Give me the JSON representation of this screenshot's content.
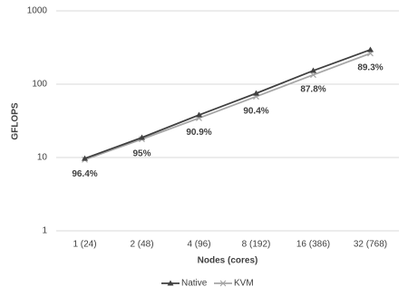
{
  "chart_data": {
    "type": "line",
    "y_label": "GFLOPS",
    "x_label": "Nodes (cores)",
    "categories": [
      "1 (24)",
      "2 (48)",
      "4 (96)",
      "8 (192)",
      "16 (386)",
      "32 (768)"
    ],
    "series": [
      {
        "name": "Native",
        "color": "#404040",
        "marker": "triangle",
        "values": [
          9.7,
          18.7,
          38,
          75,
          153,
          295
        ]
      },
      {
        "name": "KVM",
        "color": "#a6a6a6",
        "marker": "x",
        "values": [
          9.35,
          17.8,
          34.5,
          67.8,
          134,
          263
        ]
      }
    ],
    "annotations": [
      "96.4%",
      "95%",
      "90.9%",
      "90.4%",
      "87.8%",
      "89.3%"
    ],
    "ylim": [
      1,
      1000
    ],
    "yticks": [
      1,
      10,
      100,
      1000
    ],
    "log_y": true,
    "grid": true,
    "legend": "bottom"
  }
}
